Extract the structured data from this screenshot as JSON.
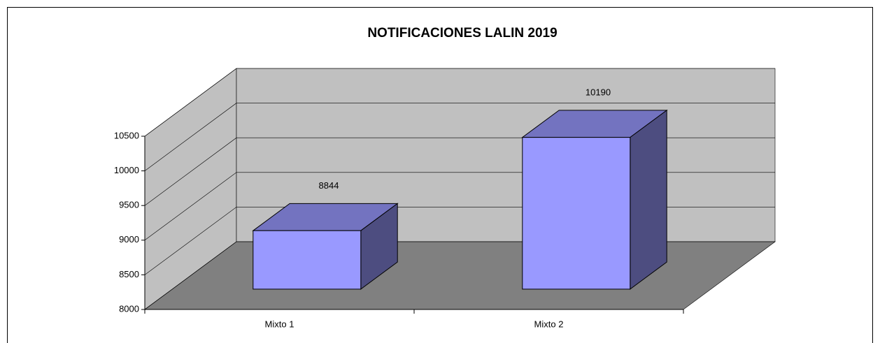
{
  "chart_data": {
    "type": "bar3d",
    "title": "NOTIFICACIONES LALIN 2019",
    "categories": [
      "Mixto 1",
      "Mixto 2"
    ],
    "values": [
      8844,
      10190
    ],
    "color": "#9999ff",
    "ylim": [
      8000,
      10500
    ],
    "yticks": [
      8000,
      8500,
      9000,
      9500,
      10000,
      10500
    ],
    "grid": true
  }
}
